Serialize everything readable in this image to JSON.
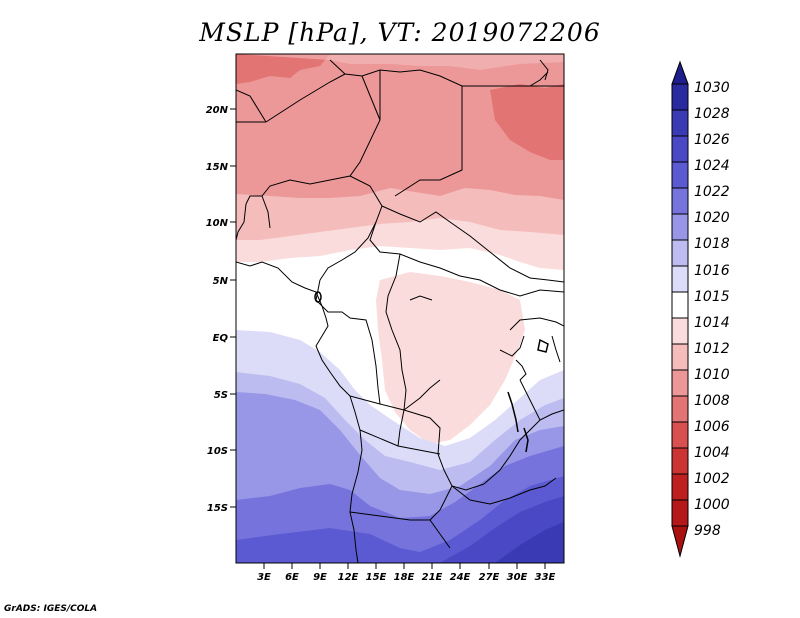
{
  "title": "MSLP [hPa], VT: 2019072206",
  "credit": "GrADS: IGES/COLA",
  "map": {
    "lat_labels": [
      "20N",
      "15N",
      "10N",
      "5N",
      "EQ",
      "5S",
      "10S",
      "15S"
    ],
    "lon_labels": [
      "3E",
      "6E",
      "9E",
      "12E",
      "15E",
      "18E",
      "21E",
      "24E",
      "27E",
      "30E",
      "33E"
    ]
  },
  "colorbar": {
    "levels": [
      "1030",
      "1028",
      "1026",
      "1024",
      "1022",
      "1020",
      "1018",
      "1016",
      "1015",
      "1014",
      "1012",
      "1010",
      "1008",
      "1006",
      "1004",
      "1002",
      "1000",
      "998"
    ],
    "colors": {
      "c1030": "#1e1e8c",
      "c1028": "#2a2aa0",
      "c1026": "#3a3ab4",
      "c1024": "#4a48c4",
      "c1022": "#5c5ad2",
      "c1020": "#7674dc",
      "c1018": "#9896e6",
      "c1016": "#bcbcf0",
      "c1015": "#dcdcf8",
      "c1014": "#ffffff",
      "c1012": "#fbdcdc",
      "c1010": "#f5bcbc",
      "c1008": "#ec9898",
      "c1006": "#e27474",
      "c1004": "#d85050",
      "c1002": "#cc3434",
      "c1000": "#be2020",
      "c998": "#aa1212"
    }
  }
}
